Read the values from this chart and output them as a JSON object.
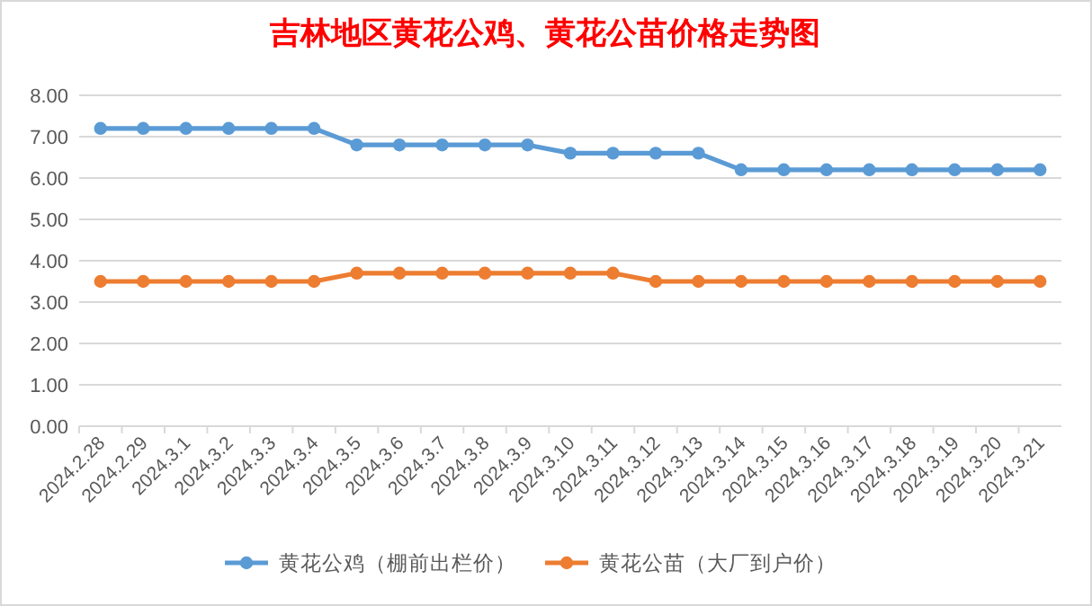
{
  "chart_data": {
    "type": "line",
    "title": "吉林地区黄花公鸡、黄花公苗价格走势图",
    "categories": [
      "2024.2.28",
      "2024.2.29",
      "2024.3.1",
      "2024.3.2",
      "2024.3.3",
      "2024.3.4",
      "2024.3.5",
      "2024.3.6",
      "2024.3.7",
      "2024.3.8",
      "2024.3.9",
      "2024.3.10",
      "2024.3.11",
      "2024.3.12",
      "2024.3.13",
      "2024.3.14",
      "2024.3.15",
      "2024.3.16",
      "2024.3.17",
      "2024.3.18",
      "2024.3.19",
      "2024.3.20",
      "2024.3.21"
    ],
    "series": [
      {
        "name": "黄花公鸡（棚前出栏价）",
        "color": "#5b9bd5",
        "values": [
          7.2,
          7.2,
          7.2,
          7.2,
          7.2,
          7.2,
          6.8,
          6.8,
          6.8,
          6.8,
          6.8,
          6.6,
          6.6,
          6.6,
          6.6,
          6.2,
          6.2,
          6.2,
          6.2,
          6.2,
          6.2,
          6.2,
          6.2
        ]
      },
      {
        "name": "黄花公苗（大厂到户价）",
        "color": "#ed7d31",
        "values": [
          3.5,
          3.5,
          3.5,
          3.5,
          3.5,
          3.5,
          3.7,
          3.7,
          3.7,
          3.7,
          3.7,
          3.7,
          3.7,
          3.5,
          3.5,
          3.5,
          3.5,
          3.5,
          3.5,
          3.5,
          3.5,
          3.5,
          3.5
        ]
      }
    ],
    "ylim": [
      0,
      8
    ],
    "yticks": [
      {
        "value": 0,
        "label": "0.00"
      },
      {
        "value": 1,
        "label": "1.00"
      },
      {
        "value": 2,
        "label": "2.00"
      },
      {
        "value": 3,
        "label": "3.00"
      },
      {
        "value": 4,
        "label": "4.00"
      },
      {
        "value": 5,
        "label": "5.00"
      },
      {
        "value": 6,
        "label": "6.00"
      },
      {
        "value": 7,
        "label": "7.00"
      },
      {
        "value": 8,
        "label": "8.00"
      }
    ],
    "grid": "y",
    "legend": "bottom",
    "marker": "circle",
    "line_style": "solid"
  }
}
